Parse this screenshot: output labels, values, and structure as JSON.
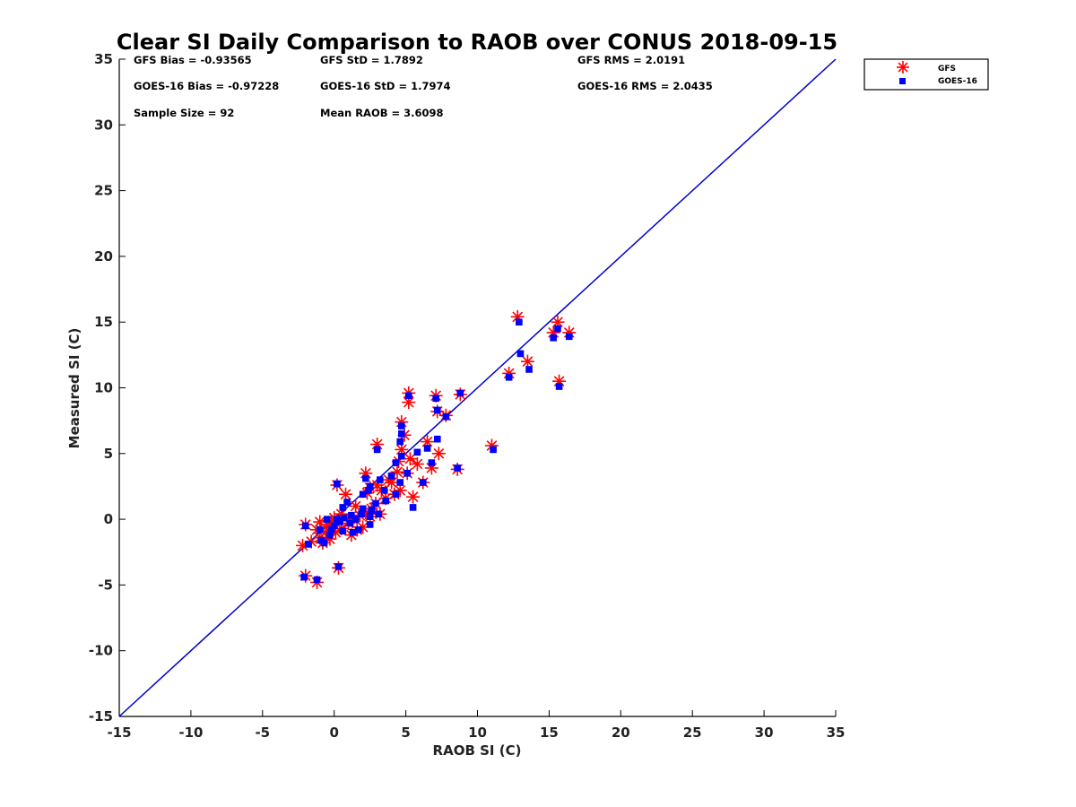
{
  "chart_data": {
    "type": "scatter",
    "title": "Clear SI Daily Comparison to RAOB over CONUS 2018-09-15",
    "xlabel": "RAOB SI (C)",
    "ylabel": "Measured SI (C)",
    "xlim": [
      -15,
      35
    ],
    "ylim": [
      -15,
      35
    ],
    "xticks": [
      "-15",
      "-10",
      "-5",
      "0",
      "5",
      "10",
      "15",
      "20",
      "25",
      "30",
      "35"
    ],
    "yticks": [
      "-15",
      "-10",
      "-5",
      "0",
      "5",
      "10",
      "15",
      "20",
      "25",
      "30",
      "35"
    ],
    "grid": false,
    "legend_position": "outside top-right",
    "reference_line": {
      "type": "one-to-one",
      "color": "#0000cc"
    },
    "stats": [
      "GFS Bias = -0.93565",
      "GFS StD = 1.7892",
      "GFS RMS = 2.0191",
      "GOES-16 Bias = -0.97228",
      "GOES-16 StD = 1.7974",
      "GOES-16 RMS = 2.0435",
      "Sample Size = 92",
      "Mean RAOB = 3.6098"
    ],
    "series": [
      {
        "name": "GFS",
        "color": "#ff0000",
        "marker": "asterisk",
        "points": [
          [
            12.8,
            15.4
          ],
          [
            15.6,
            15.0
          ],
          [
            15.3,
            14.2
          ],
          [
            16.4,
            14.2
          ],
          [
            13.5,
            12.0
          ],
          [
            12.2,
            11.1
          ],
          [
            15.7,
            10.5
          ],
          [
            5.2,
            9.6
          ],
          [
            5.2,
            8.9
          ],
          [
            7.1,
            9.4
          ],
          [
            8.8,
            9.5
          ],
          [
            7.2,
            8.2
          ],
          [
            7.8,
            7.9
          ],
          [
            4.7,
            7.4
          ],
          [
            4.9,
            6.4
          ],
          [
            6.5,
            5.9
          ],
          [
            3.0,
            5.7
          ],
          [
            11.0,
            5.6
          ],
          [
            4.7,
            5.3
          ],
          [
            7.3,
            5.0
          ],
          [
            5.3,
            4.6
          ],
          [
            5.8,
            4.2
          ],
          [
            4.5,
            4.4
          ],
          [
            6.8,
            3.9
          ],
          [
            8.6,
            3.8
          ],
          [
            4.4,
            3.6
          ],
          [
            5.1,
            3.5
          ],
          [
            2.2,
            3.5
          ],
          [
            3.8,
            3.0
          ],
          [
            4.0,
            2.8
          ],
          [
            6.2,
            2.8
          ],
          [
            3.0,
            2.6
          ],
          [
            0.2,
            2.6
          ],
          [
            2.5,
            2.4
          ],
          [
            3.3,
            2.2
          ],
          [
            4.6,
            2.2
          ],
          [
            2.3,
            2.0
          ],
          [
            4.2,
            1.9
          ],
          [
            0.8,
            1.9
          ],
          [
            5.5,
            1.7
          ],
          [
            3.6,
            1.6
          ],
          [
            2.9,
            1.2
          ],
          [
            1.5,
            1.0
          ],
          [
            2.6,
            0.8
          ],
          [
            2.2,
            0.5
          ],
          [
            0.5,
            0.4
          ],
          [
            3.2,
            0.4
          ],
          [
            1.8,
            0.3
          ],
          [
            2.5,
            0.2
          ],
          [
            0.0,
            0.1
          ],
          [
            1.3,
            0.0
          ],
          [
            -0.2,
            -0.2
          ],
          [
            -0.5,
            -0.4
          ],
          [
            -1.0,
            -0.2
          ],
          [
            -2.0,
            -0.4
          ],
          [
            1.0,
            -0.3
          ],
          [
            -0.2,
            -0.6
          ],
          [
            0.5,
            -0.7
          ],
          [
            2.0,
            -0.6
          ],
          [
            1.6,
            -0.8
          ],
          [
            -1.2,
            -0.8
          ],
          [
            -0.6,
            -1.0
          ],
          [
            0.1,
            -1.0
          ],
          [
            1.2,
            -1.2
          ],
          [
            -1.0,
            -1.4
          ],
          [
            -0.3,
            -1.5
          ],
          [
            -1.6,
            -1.7
          ],
          [
            -0.8,
            -1.8
          ],
          [
            -2.2,
            -2.0
          ],
          [
            0.3,
            -3.7
          ],
          [
            -2.0,
            -4.3
          ],
          [
            -1.2,
            -4.8
          ]
        ]
      },
      {
        "name": "GOES-16",
        "color": "#0000ff",
        "marker": "square",
        "points": [
          [
            12.9,
            15.0
          ],
          [
            15.6,
            14.5
          ],
          [
            15.3,
            13.8
          ],
          [
            16.4,
            13.9
          ],
          [
            13.0,
            12.6
          ],
          [
            13.6,
            11.4
          ],
          [
            12.2,
            10.8
          ],
          [
            15.7,
            10.1
          ],
          [
            5.2,
            9.4
          ],
          [
            8.8,
            9.6
          ],
          [
            7.1,
            9.2
          ],
          [
            7.2,
            8.3
          ],
          [
            7.8,
            7.8
          ],
          [
            4.7,
            7.1
          ],
          [
            4.7,
            6.5
          ],
          [
            4.6,
            5.9
          ],
          [
            7.2,
            6.1
          ],
          [
            3.0,
            5.3
          ],
          [
            11.1,
            5.3
          ],
          [
            5.8,
            5.1
          ],
          [
            6.5,
            5.4
          ],
          [
            4.7,
            4.8
          ],
          [
            6.8,
            4.3
          ],
          [
            4.3,
            4.3
          ],
          [
            8.6,
            3.9
          ],
          [
            5.1,
            3.5
          ],
          [
            4.0,
            3.3
          ],
          [
            2.2,
            3.1
          ],
          [
            3.2,
            3.0
          ],
          [
            6.2,
            2.8
          ],
          [
            4.6,
            2.8
          ],
          [
            0.2,
            2.7
          ],
          [
            2.5,
            2.5
          ],
          [
            2.4,
            2.2
          ],
          [
            3.5,
            2.2
          ],
          [
            2.0,
            1.9
          ],
          [
            4.3,
            1.9
          ],
          [
            3.6,
            1.4
          ],
          [
            0.9,
            1.3
          ],
          [
            2.9,
            1.2
          ],
          [
            5.5,
            0.9
          ],
          [
            0.6,
            0.9
          ],
          [
            2.0,
            0.8
          ],
          [
            2.6,
            0.7
          ],
          [
            1.9,
            0.4
          ],
          [
            3.1,
            0.4
          ],
          [
            1.2,
            0.3
          ],
          [
            2.5,
            0.2
          ],
          [
            0.7,
            0.1
          ],
          [
            0.2,
            0.0
          ],
          [
            1.5,
            0.0
          ],
          [
            -0.5,
            0.0
          ],
          [
            0.4,
            -0.2
          ],
          [
            1.1,
            -0.3
          ],
          [
            2.5,
            -0.4
          ],
          [
            -2.0,
            -0.5
          ],
          [
            0.0,
            -0.5
          ],
          [
            -0.2,
            -0.8
          ],
          [
            1.7,
            -0.8
          ],
          [
            -1.0,
            -0.8
          ],
          [
            0.6,
            -0.9
          ],
          [
            1.3,
            -1.0
          ],
          [
            -0.3,
            -1.2
          ],
          [
            -0.9,
            -1.6
          ],
          [
            -0.7,
            -1.8
          ],
          [
            -1.8,
            -1.9
          ],
          [
            0.3,
            -3.6
          ],
          [
            -2.1,
            -4.4
          ],
          [
            -1.2,
            -4.6
          ]
        ]
      }
    ]
  }
}
